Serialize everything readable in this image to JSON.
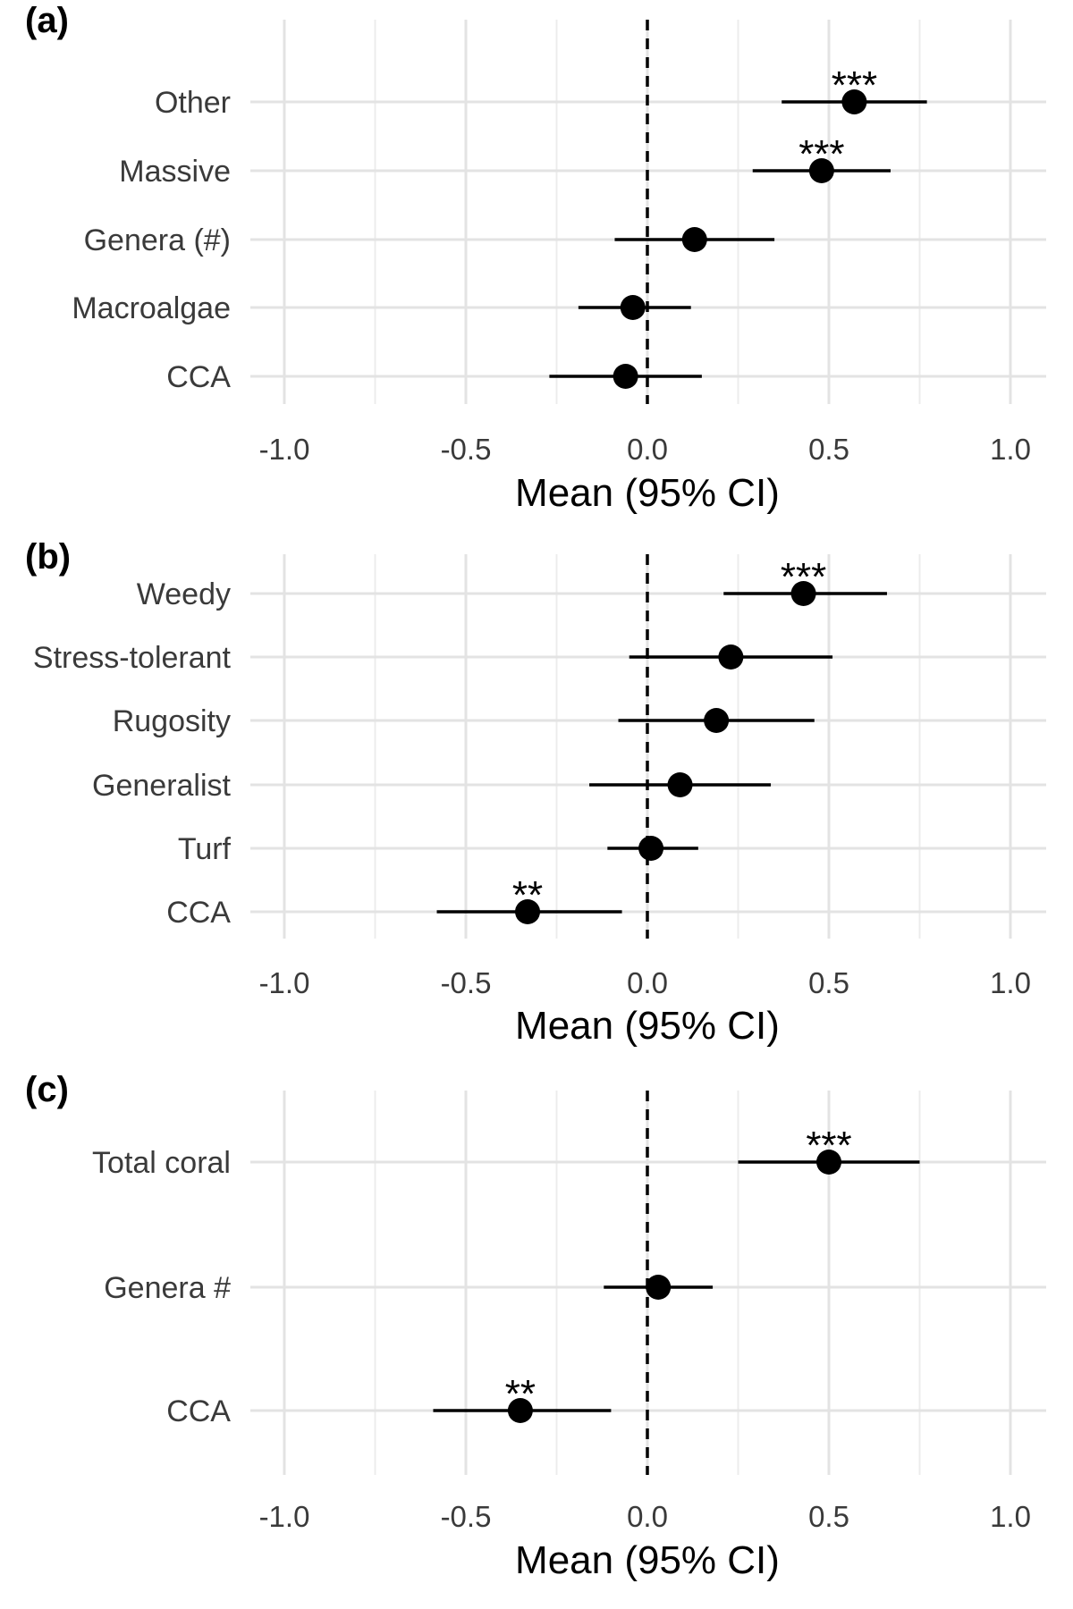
{
  "chart_data": [
    {
      "panel": "(a)",
      "type": "forest",
      "xlabel": "Mean (95% CI)",
      "xlim": [
        -1.0,
        1.0
      ],
      "xticks": [
        "-1.0",
        "-0.5",
        "0.0",
        "0.5",
        "1.0"
      ],
      "categories": [
        "Other",
        "Massive",
        "Genera (#)",
        "Macroalgae",
        "CCA"
      ],
      "mean": [
        0.57,
        0.48,
        0.13,
        -0.04,
        -0.06
      ],
      "lower": [
        0.37,
        0.29,
        -0.09,
        -0.19,
        -0.27
      ],
      "upper": [
        0.77,
        0.67,
        0.35,
        0.12,
        0.15
      ],
      "significance": [
        "***",
        "***",
        "",
        "",
        ""
      ]
    },
    {
      "panel": "(b)",
      "type": "forest",
      "xlabel": "Mean (95% CI)",
      "xlim": [
        -1.0,
        1.0
      ],
      "xticks": [
        "-1.0",
        "-0.5",
        "0.0",
        "0.5",
        "1.0"
      ],
      "categories": [
        "Weedy",
        "Stress-tolerant",
        "Rugosity",
        "Generalist",
        "Turf",
        "CCA"
      ],
      "mean": [
        0.43,
        0.23,
        0.19,
        0.09,
        0.01,
        -0.33
      ],
      "lower": [
        0.21,
        -0.05,
        -0.08,
        -0.16,
        -0.11,
        -0.58
      ],
      "upper": [
        0.66,
        0.51,
        0.46,
        0.34,
        0.14,
        -0.07
      ],
      "significance": [
        "***",
        "",
        "",
        "",
        "",
        "**"
      ]
    },
    {
      "panel": "(c)",
      "type": "forest",
      "xlabel": "Mean (95% CI)",
      "xlim": [
        -1.0,
        1.0
      ],
      "xticks": [
        "-1.0",
        "-0.5",
        "0.0",
        "0.5",
        "1.0"
      ],
      "categories": [
        "Total coral",
        "Genera #",
        "CCA"
      ],
      "mean": [
        0.5,
        0.03,
        -0.35
      ],
      "lower": [
        0.25,
        -0.12,
        -0.59
      ],
      "upper": [
        0.75,
        0.18,
        -0.1
      ],
      "significance": [
        "***",
        "",
        "**"
      ]
    }
  ]
}
